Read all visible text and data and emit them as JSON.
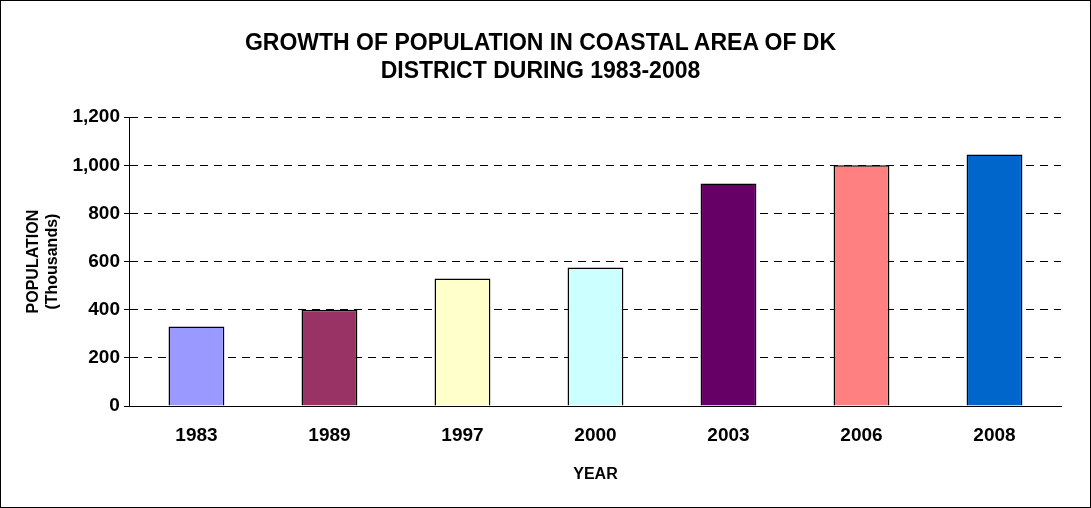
{
  "chart_data": {
    "type": "bar",
    "title": "GROWTH OF POPULATION IN COASTAL AREA OF DK\nDISTRICT DURING 1983-2008",
    "xlabel": "YEAR",
    "ylabel": "POPULATION\n(Thousands)",
    "categories": [
      "1983",
      "1989",
      "1997",
      "2000",
      "2003",
      "2006",
      "2008"
    ],
    "values": [
      330,
      400,
      530,
      575,
      925,
      1000,
      1045
    ],
    "colors": [
      "#9999ff",
      "#993366",
      "#ffffcc",
      "#ccffff",
      "#660066",
      "#ff8080",
      "#0066cc"
    ],
    "ylim": [
      0,
      1200
    ],
    "yticks": [
      {
        "value": 0,
        "label": "0"
      },
      {
        "value": 200,
        "label": "200"
      },
      {
        "value": 400,
        "label": "400"
      },
      {
        "value": 600,
        "label": "600"
      },
      {
        "value": 800,
        "label": "800"
      },
      {
        "value": 1000,
        "label": "1,000"
      },
      {
        "value": 1200,
        "label": "1,200"
      }
    ],
    "grid": "y",
    "legend": false
  }
}
